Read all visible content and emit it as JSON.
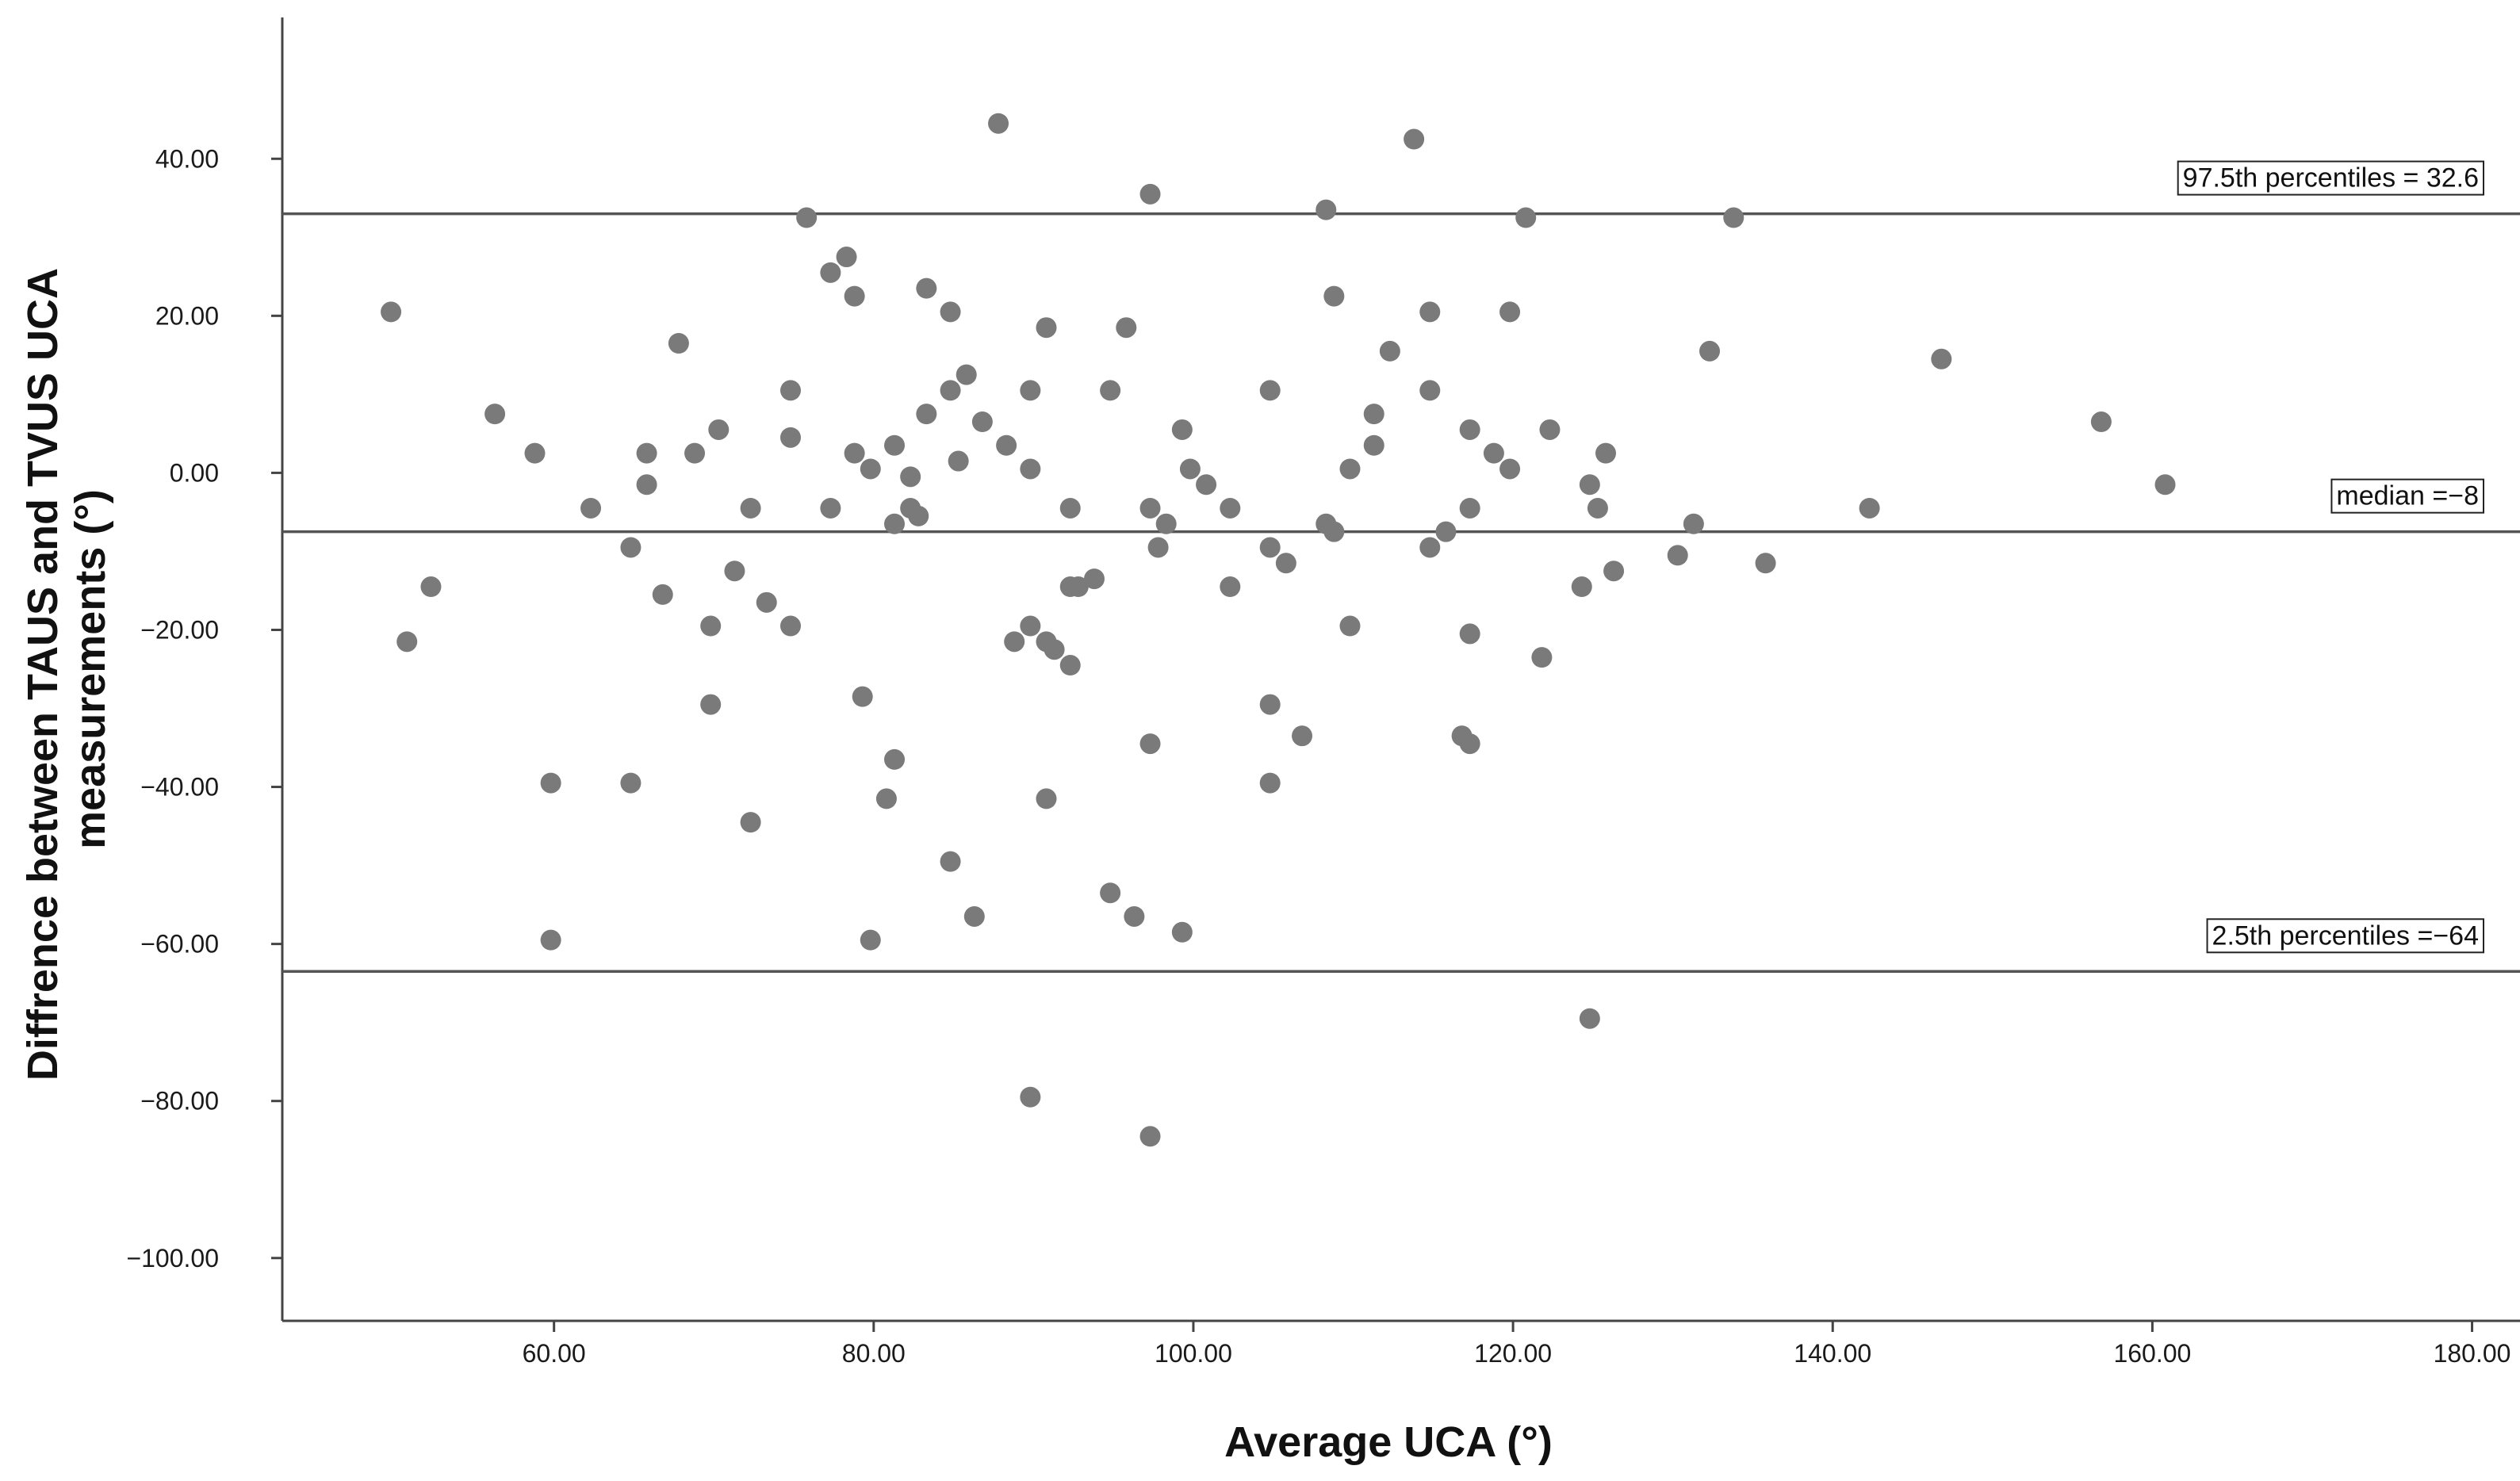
{
  "chart_data": {
    "type": "scatter",
    "title": "",
    "xlabel": "Average UCA (°)",
    "ylabel_lines": [
      "Diffrence between TAUS and TVUS UCA",
      "measurements (°)"
    ],
    "xlim": [
      43,
      183
    ],
    "ylim": [
      -108,
      58
    ],
    "xticks": [
      60,
      80,
      100,
      120,
      140,
      160,
      180
    ],
    "xtick_labels": [
      "60.00",
      "80.00",
      "100.00",
      "120.00",
      "140.00",
      "160.00",
      "180.00"
    ],
    "yticks": [
      40,
      20,
      0,
      -20,
      -40,
      -60,
      -80,
      -100
    ],
    "ytick_labels": [
      "40.00",
      "20.00",
      "0.00",
      "−20.00",
      "−40.00",
      "−60.00",
      "−80.00",
      "−100.00"
    ],
    "grid": false,
    "point_color": "#7a7a7a",
    "line_color": "#555555",
    "reference_lines": [
      {
        "name": "upper",
        "y": 33,
        "label": "97.5th percentiles = 32.6"
      },
      {
        "name": "median",
        "y": -7.5,
        "label": "median =−8"
      },
      {
        "name": "lower",
        "y": -63.5,
        "label": "2.5th percentiles =−64"
      }
    ],
    "points": [
      [
        49.8,
        20.5
      ],
      [
        50.8,
        -21.5
      ],
      [
        52.3,
        -14.5
      ],
      [
        56.3,
        7.5
      ],
      [
        58.8,
        2.5
      ],
      [
        59.8,
        -39.5
      ],
      [
        59.8,
        -59.5
      ],
      [
        62.3,
        -4.5
      ],
      [
        64.8,
        -9.5
      ],
      [
        64.8,
        -39.5
      ],
      [
        65.8,
        2.5
      ],
      [
        65.8,
        -1.5
      ],
      [
        66.8,
        -15.5
      ],
      [
        67.8,
        16.5
      ],
      [
        68.8,
        2.5
      ],
      [
        69.8,
        -19.5
      ],
      [
        69.8,
        -29.5
      ],
      [
        70.3,
        5.5
      ],
      [
        71.3,
        -12.5
      ],
      [
        72.3,
        -4.5
      ],
      [
        72.3,
        -44.5
      ],
      [
        73.3,
        -16.5
      ],
      [
        74.8,
        10.5
      ],
      [
        74.8,
        4.5
      ],
      [
        74.8,
        -19.5
      ],
      [
        75.8,
        32.5
      ],
      [
        77.3,
        25.5
      ],
      [
        77.3,
        -4.5
      ],
      [
        78.3,
        27.5
      ],
      [
        78.8,
        22.5
      ],
      [
        78.8,
        2.5
      ],
      [
        79.3,
        -28.5
      ],
      [
        79.8,
        0.5
      ],
      [
        79.8,
        -59.5
      ],
      [
        80.8,
        -41.5
      ],
      [
        81.3,
        3.5
      ],
      [
        81.3,
        -6.5
      ],
      [
        81.3,
        -36.5
      ],
      [
        82.3,
        -0.5
      ],
      [
        82.3,
        -4.5
      ],
      [
        82.8,
        -5.5
      ],
      [
        83.3,
        23.5
      ],
      [
        83.3,
        7.5
      ],
      [
        84.8,
        20.5
      ],
      [
        84.8,
        10.5
      ],
      [
        84.8,
        -49.5
      ],
      [
        85.3,
        1.5
      ],
      [
        85.8,
        12.5
      ],
      [
        86.3,
        -56.5
      ],
      [
        86.8,
        6.5
      ],
      [
        87.8,
        44.5
      ],
      [
        88.3,
        3.5
      ],
      [
        88.8,
        -21.5
      ],
      [
        89.8,
        10.5
      ],
      [
        89.8,
        0.5
      ],
      [
        89.8,
        -19.5
      ],
      [
        89.8,
        -79.5
      ],
      [
        90.8,
        18.5
      ],
      [
        90.8,
        -21.5
      ],
      [
        90.8,
        -41.5
      ],
      [
        91.3,
        -22.5
      ],
      [
        92.3,
        -4.5
      ],
      [
        92.3,
        -14.5
      ],
      [
        92.3,
        -24.5
      ],
      [
        92.8,
        -14.5
      ],
      [
        93.8,
        -13.5
      ],
      [
        94.8,
        10.5
      ],
      [
        94.8,
        -53.5
      ],
      [
        95.8,
        18.5
      ],
      [
        96.3,
        -56.5
      ],
      [
        97.3,
        35.5
      ],
      [
        97.3,
        -4.5
      ],
      [
        97.3,
        -34.5
      ],
      [
        97.3,
        -84.5
      ],
      [
        97.8,
        -9.5
      ],
      [
        98.3,
        -6.5
      ],
      [
        99.3,
        5.5
      ],
      [
        99.3,
        -58.5
      ],
      [
        99.8,
        0.5
      ],
      [
        100.8,
        -1.5
      ],
      [
        102.3,
        -4.5
      ],
      [
        102.3,
        -14.5
      ],
      [
        104.8,
        10.5
      ],
      [
        104.8,
        -9.5
      ],
      [
        104.8,
        -29.5
      ],
      [
        104.8,
        -39.5
      ],
      [
        105.8,
        -11.5
      ],
      [
        106.8,
        -33.5
      ],
      [
        108.3,
        33.5
      ],
      [
        108.3,
        -6.5
      ],
      [
        108.8,
        22.5
      ],
      [
        108.8,
        -7.5
      ],
      [
        109.8,
        0.5
      ],
      [
        109.8,
        -19.5
      ],
      [
        111.3,
        7.5
      ],
      [
        111.3,
        3.5
      ],
      [
        112.3,
        15.5
      ],
      [
        113.8,
        42.5
      ],
      [
        114.8,
        20.5
      ],
      [
        114.8,
        10.5
      ],
      [
        114.8,
        -9.5
      ],
      [
        115.8,
        -7.5
      ],
      [
        116.8,
        -33.5
      ],
      [
        117.3,
        5.5
      ],
      [
        117.3,
        -4.5
      ],
      [
        117.3,
        -20.5
      ],
      [
        117.3,
        -34.5
      ],
      [
        118.8,
        2.5
      ],
      [
        119.8,
        20.5
      ],
      [
        119.8,
        0.5
      ],
      [
        120.8,
        32.5
      ],
      [
        121.8,
        -23.5
      ],
      [
        122.3,
        5.5
      ],
      [
        124.3,
        -14.5
      ],
      [
        124.8,
        -1.5
      ],
      [
        124.8,
        -69.5
      ],
      [
        125.3,
        -4.5
      ],
      [
        125.8,
        2.5
      ],
      [
        126.3,
        -12.5
      ],
      [
        130.3,
        -10.5
      ],
      [
        131.3,
        -6.5
      ],
      [
        132.3,
        15.5
      ],
      [
        133.8,
        32.5
      ],
      [
        135.8,
        -11.5
      ],
      [
        142.3,
        -4.5
      ],
      [
        146.8,
        14.5
      ],
      [
        156.8,
        6.5
      ],
      [
        160.8,
        -1.5
      ]
    ]
  }
}
